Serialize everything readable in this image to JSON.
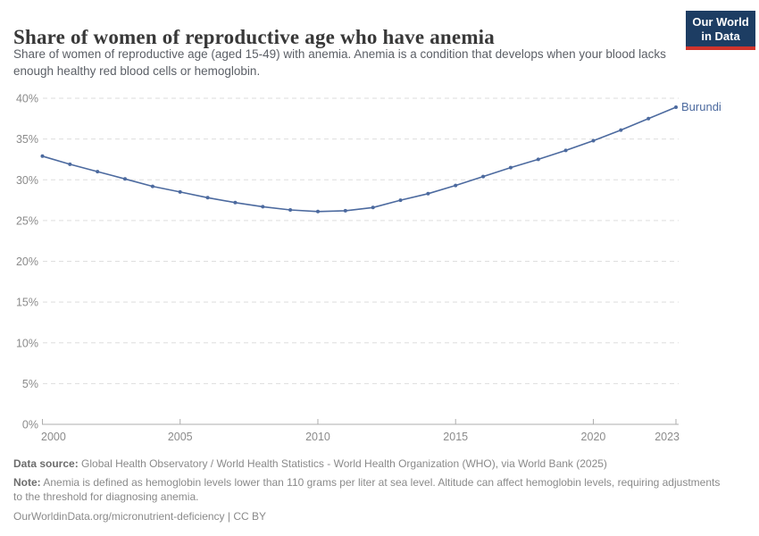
{
  "header": {
    "title": "Share of women of reproductive age who have anemia",
    "subtitle": "Share of women of reproductive age (aged 15-49) with anemia. Anemia is a condition that develops when your blood lacks enough healthy red blood cells or hemoglobin.",
    "logo": {
      "line1": "Our World",
      "line2": "in Data"
    }
  },
  "chart_data": {
    "type": "line",
    "title": "Share of women of reproductive age who have anemia",
    "xlabel": "",
    "ylabel": "",
    "xlim": [
      2000,
      2023
    ],
    "ylim": [
      0,
      40
    ],
    "grid": "horizontal-dashed",
    "legend_position": "end-of-line",
    "x_ticks": [
      2000,
      2005,
      2010,
      2015,
      2020,
      2023
    ],
    "y_ticks": [
      0,
      5,
      10,
      15,
      20,
      25,
      30,
      35,
      40
    ],
    "y_tick_suffix": "%",
    "series": [
      {
        "name": "Burundi",
        "color": "#4C6A9F",
        "x": [
          2000,
          2001,
          2002,
          2003,
          2004,
          2005,
          2006,
          2007,
          2008,
          2009,
          2010,
          2011,
          2012,
          2013,
          2014,
          2015,
          2016,
          2017,
          2018,
          2019,
          2020,
          2021,
          2022,
          2023
        ],
        "values": [
          32.9,
          31.9,
          31.0,
          30.1,
          29.2,
          28.5,
          27.8,
          27.2,
          26.7,
          26.3,
          26.1,
          26.2,
          26.6,
          27.5,
          28.3,
          29.3,
          30.4,
          31.5,
          32.5,
          33.6,
          34.8,
          36.1,
          37.5,
          38.9
        ]
      }
    ]
  },
  "footer": {
    "data_source_label": "Data source:",
    "data_source_text": "Global Health Observatory / World Health Statistics - World Health Organization (WHO), via World Bank (2025)",
    "note_label": "Note:",
    "note_text": "Anemia is defined as hemoglobin levels lower than 110 grams per liter at sea level. Altitude can affect hemoglobin levels, requiring adjustments to the threshold for diagnosing anemia.",
    "license_text": "OurWorldinData.org/micronutrient-deficiency | CC BY"
  },
  "colors": {
    "series_line": "#4C6A9F",
    "gridline": "#dedede",
    "axis": "#adadad",
    "tick_label": "#8b8b8b",
    "logo_background": "#1d3d63",
    "logo_stripe": "#d0342c",
    "title_text": "#383838",
    "subtitle_text": "#5b5f66",
    "footer_text": "#8a8a8a"
  }
}
